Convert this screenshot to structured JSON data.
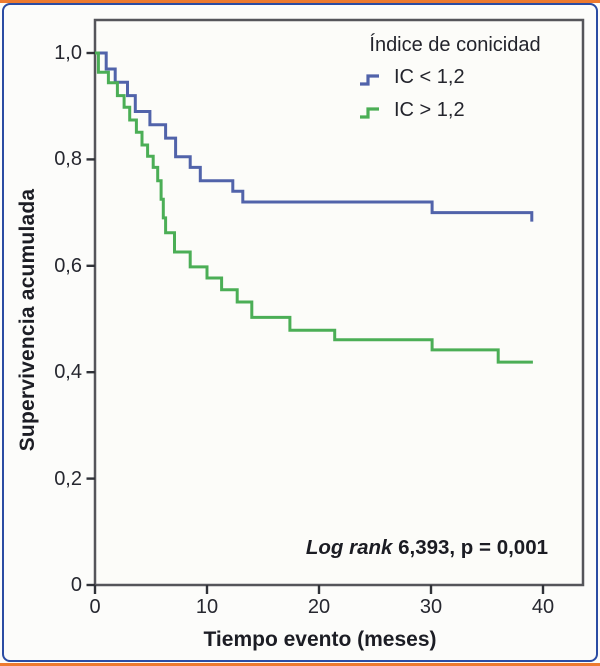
{
  "figure": {
    "background": "#fcfcfa",
    "top_bottom_rule_color": "#ed7a2f",
    "border_color": "#2b4ca3",
    "plot_frame_color": "#55555a"
  },
  "chart_data": {
    "type": "line",
    "chart_kind": "kaplan-meier-step-survival",
    "title": "",
    "xlabel": "Tiempo evento (meses)",
    "ylabel": "Supervivencia acumulada",
    "xlim": [
      0,
      43.5
    ],
    "ylim": [
      0,
      1.06
    ],
    "grid": false,
    "xticks": [
      "0",
      "10",
      "20",
      "30",
      "40"
    ],
    "xtick_values": [
      0,
      10,
      20,
      30,
      40
    ],
    "yticks": [
      "1,0",
      "0,8",
      "0,6",
      "0,4",
      "0,2",
      "0"
    ],
    "ytick_values": [
      1.0,
      0.8,
      0.6,
      0.4,
      0.2,
      0
    ],
    "legend": {
      "title": "Índice de conicidad",
      "position": "top-right",
      "entries": [
        {
          "label": "IC < 1,2",
          "color": "#5163aa"
        },
        {
          "label": "IC > 1,2",
          "color": "#4bae56"
        }
      ]
    },
    "annotation": {
      "full": "Log rank 6,393, p = 0,001",
      "italic": "Log rank",
      "rest": " 6,393, p = 0,001"
    },
    "series": [
      {
        "name": "IC < 1,2",
        "color": "#5163aa",
        "end_t": 39.0,
        "steps": [
          [
            0,
            1.0
          ],
          [
            1.0,
            0.97
          ],
          [
            1.8,
            0.945
          ],
          [
            2.9,
            0.92
          ],
          [
            3.6,
            0.89
          ],
          [
            4.9,
            0.865
          ],
          [
            6.3,
            0.84
          ],
          [
            7.2,
            0.805
          ],
          [
            8.5,
            0.785
          ],
          [
            9.4,
            0.76
          ],
          [
            12.3,
            0.74
          ],
          [
            13.2,
            0.72
          ],
          [
            30.1,
            0.7
          ],
          [
            39.0,
            0.683
          ]
        ]
      },
      {
        "name": "IC > 1,2",
        "color": "#4bae56",
        "end_t": 39.1,
        "steps": [
          [
            0,
            1.0
          ],
          [
            0.3,
            0.964
          ],
          [
            1.2,
            0.944
          ],
          [
            2.0,
            0.92
          ],
          [
            2.6,
            0.898
          ],
          [
            3.1,
            0.874
          ],
          [
            3.7,
            0.851
          ],
          [
            4.2,
            0.827
          ],
          [
            4.7,
            0.806
          ],
          [
            5.2,
            0.785
          ],
          [
            5.6,
            0.76
          ],
          [
            5.9,
            0.725
          ],
          [
            6.1,
            0.69
          ],
          [
            6.3,
            0.662
          ],
          [
            7.1,
            0.626
          ],
          [
            8.5,
            0.598
          ],
          [
            10.0,
            0.577
          ],
          [
            11.3,
            0.555
          ],
          [
            12.7,
            0.532
          ],
          [
            14.0,
            0.503
          ],
          [
            17.4,
            0.479
          ],
          [
            21.4,
            0.461
          ],
          [
            30.1,
            0.442
          ],
          [
            36.0,
            0.419
          ]
        ]
      }
    ]
  }
}
